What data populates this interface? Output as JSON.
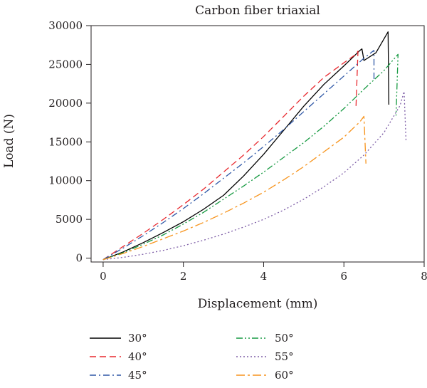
{
  "chart_data": {
    "type": "line",
    "title": "Carbon fiber triaxial",
    "xlabel": "Displacement (mm)",
    "ylabel": "Load (N)",
    "xlim": [
      -0.3,
      8
    ],
    "ylim": [
      -500,
      30000
    ],
    "xticks": [
      0,
      2,
      4,
      6,
      8
    ],
    "yticks": [
      0,
      5000,
      10000,
      15000,
      20000,
      25000,
      30000
    ],
    "grid": false,
    "legend_position": "bottom",
    "series": [
      {
        "name": "30°",
        "color": "#000000",
        "dash": "",
        "points": [
          [
            0,
            -200
          ],
          [
            0.5,
            800
          ],
          [
            1,
            2000
          ],
          [
            1.5,
            3300
          ],
          [
            2,
            4700
          ],
          [
            2.5,
            6300
          ],
          [
            3,
            8100
          ],
          [
            3.5,
            10600
          ],
          [
            4,
            13400
          ],
          [
            4.5,
            16500
          ],
          [
            5,
            19600
          ],
          [
            5.5,
            22400
          ],
          [
            6,
            24800
          ],
          [
            6.4,
            26800
          ],
          [
            6.45,
            27000
          ],
          [
            6.5,
            25500
          ],
          [
            6.8,
            26500
          ],
          [
            7.1,
            29200
          ],
          [
            7.12,
            19800
          ]
        ]
      },
      {
        "name": "40°",
        "color": "#e8292f",
        "dash": "9,5",
        "points": [
          [
            0,
            -200
          ],
          [
            0.5,
            1500
          ],
          [
            1,
            3200
          ],
          [
            1.5,
            5000
          ],
          [
            2,
            6900
          ],
          [
            2.5,
            8900
          ],
          [
            3,
            11100
          ],
          [
            3.5,
            13300
          ],
          [
            4,
            15700
          ],
          [
            4.5,
            18300
          ],
          [
            5,
            20900
          ],
          [
            5.5,
            23300
          ],
          [
            6,
            25200
          ],
          [
            6.3,
            26300
          ],
          [
            6.35,
            26700
          ],
          [
            6.3,
            19200
          ]
        ]
      },
      {
        "name": "45°",
        "color": "#2e57a6",
        "dash": "9,4,2,4",
        "points": [
          [
            0,
            -200
          ],
          [
            0.5,
            1300
          ],
          [
            1,
            2900
          ],
          [
            1.5,
            4600
          ],
          [
            2,
            6400
          ],
          [
            2.5,
            8300
          ],
          [
            3,
            10300
          ],
          [
            3.5,
            12300
          ],
          [
            4,
            14400
          ],
          [
            4.5,
            16600
          ],
          [
            5,
            18900
          ],
          [
            5.5,
            21200
          ],
          [
            6,
            23500
          ],
          [
            6.5,
            25800
          ],
          [
            6.75,
            26800
          ],
          [
            6.75,
            23100
          ]
        ]
      },
      {
        "name": "50°",
        "color": "#179a42",
        "dash": "9,3,2,3,2,3",
        "points": [
          [
            0,
            -200
          ],
          [
            0.5,
            700
          ],
          [
            1,
            1800
          ],
          [
            1.5,
            3000
          ],
          [
            2,
            4400
          ],
          [
            2.5,
            5900
          ],
          [
            3,
            7600
          ],
          [
            3.5,
            9300
          ],
          [
            4,
            11100
          ],
          [
            4.5,
            13000
          ],
          [
            5,
            14900
          ],
          [
            5.5,
            17000
          ],
          [
            6,
            19300
          ],
          [
            6.5,
            21800
          ],
          [
            7,
            24200
          ],
          [
            7.3,
            26000
          ],
          [
            7.35,
            26300
          ],
          [
            7.3,
            18400
          ]
        ]
      },
      {
        "name": "55°",
        "color": "#7d5da6",
        "dash": "2,3",
        "points": [
          [
            0,
            -200
          ],
          [
            0.5,
            100
          ],
          [
            1,
            500
          ],
          [
            1.5,
            1000
          ],
          [
            2,
            1600
          ],
          [
            2.5,
            2300
          ],
          [
            3,
            3100
          ],
          [
            3.5,
            4000
          ],
          [
            4,
            5000
          ],
          [
            4.5,
            6200
          ],
          [
            5,
            7600
          ],
          [
            5.5,
            9200
          ],
          [
            6,
            11000
          ],
          [
            6.5,
            13300
          ],
          [
            7,
            16200
          ],
          [
            7.4,
            19700
          ],
          [
            7.5,
            21500
          ],
          [
            7.55,
            15000
          ]
        ]
      },
      {
        "name": "60°",
        "color": "#f7941d",
        "dash": "12,4,3,4",
        "points": [
          [
            0,
            -200
          ],
          [
            0.5,
            600
          ],
          [
            1,
            1500
          ],
          [
            1.5,
            2500
          ],
          [
            2,
            3500
          ],
          [
            2.5,
            4600
          ],
          [
            3,
            5800
          ],
          [
            3.5,
            7100
          ],
          [
            4,
            8500
          ],
          [
            4.5,
            10100
          ],
          [
            5,
            11800
          ],
          [
            5.5,
            13700
          ],
          [
            6,
            15600
          ],
          [
            6.4,
            17600
          ],
          [
            6.5,
            18300
          ],
          [
            6.55,
            12200
          ]
        ]
      }
    ]
  }
}
